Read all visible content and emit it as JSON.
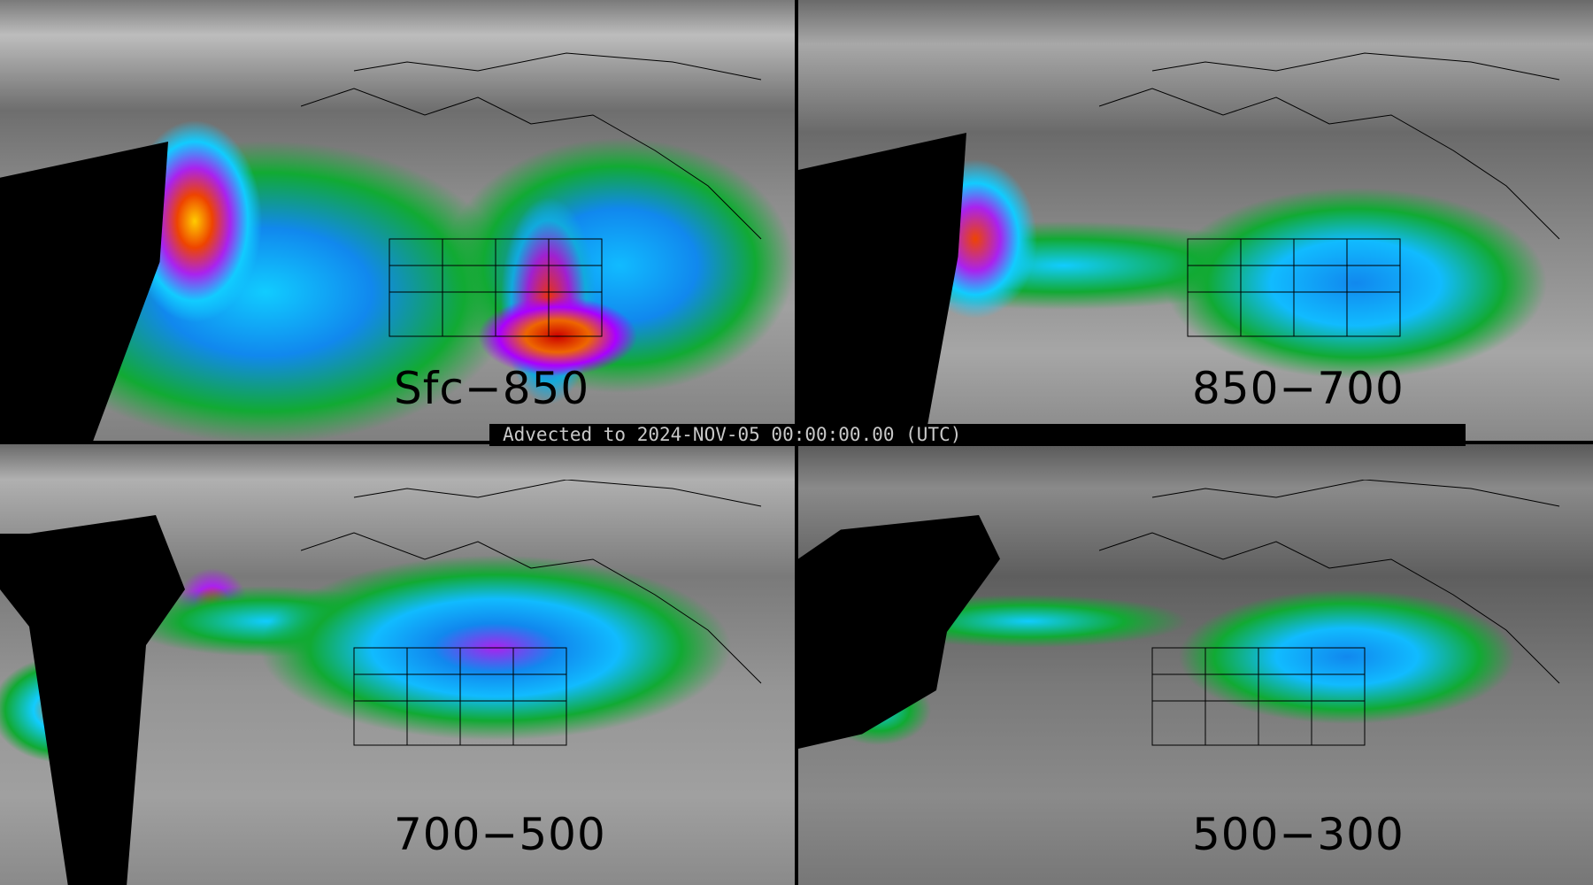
{
  "panels": [
    {
      "layer_label": "Sfc−850"
    },
    {
      "layer_label": "850−700"
    },
    {
      "layer_label": "700−500"
    },
    {
      "layer_label": "500−300"
    }
  ],
  "banner": {
    "text": "Advected to 2024-NOV-05 00:00:00.00 (UTC)"
  },
  "colors": {
    "background": "#000000",
    "banner_text": "#c8c8c8",
    "label_text": "#000000"
  }
}
